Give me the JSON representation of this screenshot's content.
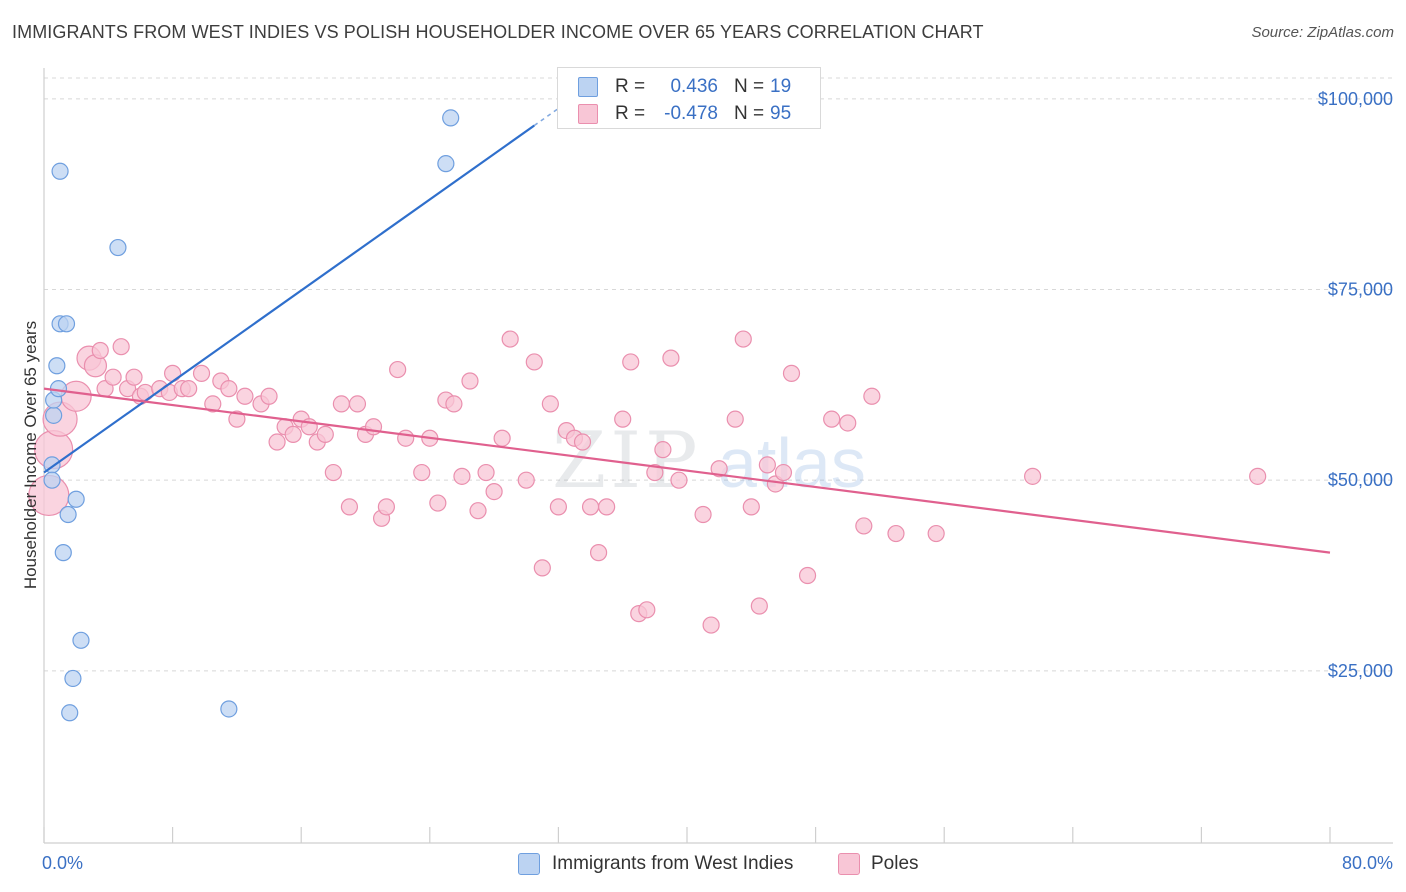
{
  "title": "IMMIGRANTS FROM WEST INDIES VS POLISH HOUSEHOLDER INCOME OVER 65 YEARS CORRELATION CHART",
  "source": "Source: ZipAtlas.com",
  "watermark": {
    "zip": "ZIP",
    "atlas": "atlas"
  },
  "colors": {
    "blue_fill": "#bcd3f2",
    "blue_stroke": "#6f9fdf",
    "blue_line": "#2f6fcc",
    "pink_fill": "#f8c6d6",
    "pink_stroke": "#ea8fae",
    "pink_line": "#e0608e",
    "tick_label": "#3a70c4",
    "grid": "#d8d8d8"
  },
  "legend_top": {
    "rows": [
      {
        "r_label": "R =",
        "r_value": "0.436",
        "n_label": "N =",
        "n_value": "19",
        "color": "blue"
      },
      {
        "r_label": "R =",
        "r_value": "-0.478",
        "n_label": "N =",
        "n_value": "95",
        "color": "pink"
      }
    ]
  },
  "legend_bottom": [
    {
      "label": "Immigrants from West Indies",
      "color": "blue"
    },
    {
      "label": "Poles",
      "color": "pink"
    }
  ],
  "chart_data": {
    "type": "scatter",
    "title": "IMMIGRANTS FROM WEST INDIES VS POLISH HOUSEHOLDER INCOME OVER 65 YEARS CORRELATION CHART",
    "xlabel": "",
    "ylabel": "Householder Income Over 65 years",
    "xlim": [
      0,
      80
    ],
    "ylim": [
      0,
      105000
    ],
    "x_tick_labels": [
      "0.0%",
      "80.0%"
    ],
    "y_ticks": [
      25000,
      50000,
      75000,
      100000
    ],
    "y_tick_labels": [
      "$25,000",
      "$50,000",
      "$75,000",
      "$100,000"
    ],
    "grid": true,
    "legend_position": "top-center",
    "series": [
      {
        "name": "Immigrants from West Indies",
        "color": "blue",
        "points": [
          [
            0.5,
            52000
          ],
          [
            0.5,
            50000
          ],
          [
            0.6,
            58500
          ],
          [
            0.6,
            60500
          ],
          [
            0.8,
            65000
          ],
          [
            0.9,
            62000
          ],
          [
            1.0,
            90500
          ],
          [
            1.0,
            70500
          ],
          [
            1.2,
            40500
          ],
          [
            1.4,
            70500
          ],
          [
            1.5,
            45500
          ],
          [
            1.6,
            19500
          ],
          [
            1.8,
            24000
          ],
          [
            2.0,
            47500
          ],
          [
            2.3,
            29000
          ],
          [
            4.6,
            80500
          ],
          [
            11.5,
            20000
          ],
          [
            25.0,
            91500
          ],
          [
            25.3,
            97500
          ]
        ],
        "trend": {
          "x": [
            0,
            30.5
          ],
          "y": [
            51000,
            96500
          ],
          "solid_to_x": 30.5,
          "dashed_to_x": 34.5
        }
      },
      {
        "name": "Poles",
        "color": "pink",
        "points": [
          [
            0.3,
            48000
          ],
          [
            0.6,
            54000
          ],
          [
            1.0,
            58000
          ],
          [
            2.0,
            61000
          ],
          [
            2.8,
            66000
          ],
          [
            3.2,
            65000
          ],
          [
            3.5,
            67000
          ],
          [
            3.8,
            62000
          ],
          [
            4.3,
            63500
          ],
          [
            4.8,
            67500
          ],
          [
            5.2,
            62000
          ],
          [
            5.6,
            63500
          ],
          [
            6.0,
            61000
          ],
          [
            6.3,
            61500
          ],
          [
            7.2,
            62000
          ],
          [
            7.8,
            61500
          ],
          [
            8.0,
            64000
          ],
          [
            8.6,
            62000
          ],
          [
            9.0,
            62000
          ],
          [
            9.8,
            64000
          ],
          [
            10.5,
            60000
          ],
          [
            11.0,
            63000
          ],
          [
            11.5,
            62000
          ],
          [
            12.0,
            58000
          ],
          [
            12.5,
            61000
          ],
          [
            13.5,
            60000
          ],
          [
            14.0,
            61000
          ],
          [
            14.5,
            55000
          ],
          [
            15.0,
            57000
          ],
          [
            15.5,
            56000
          ],
          [
            16.0,
            58000
          ],
          [
            16.5,
            57000
          ],
          [
            17.0,
            55000
          ],
          [
            17.5,
            56000
          ],
          [
            18.0,
            51000
          ],
          [
            18.5,
            60000
          ],
          [
            19.0,
            46500
          ],
          [
            19.5,
            60000
          ],
          [
            20.0,
            56000
          ],
          [
            20.5,
            57000
          ],
          [
            21.0,
            45000
          ],
          [
            21.3,
            46500
          ],
          [
            22.0,
            64500
          ],
          [
            22.5,
            55500
          ],
          [
            23.5,
            51000
          ],
          [
            24.0,
            55500
          ],
          [
            24.5,
            47000
          ],
          [
            25.0,
            60500
          ],
          [
            25.5,
            60000
          ],
          [
            26.0,
            50500
          ],
          [
            26.5,
            63000
          ],
          [
            27.0,
            46000
          ],
          [
            27.5,
            51000
          ],
          [
            28.0,
            48500
          ],
          [
            28.5,
            55500
          ],
          [
            29.0,
            68500
          ],
          [
            30.0,
            50000
          ],
          [
            30.5,
            65500
          ],
          [
            31.0,
            38500
          ],
          [
            31.5,
            60000
          ],
          [
            32.0,
            46500
          ],
          [
            32.5,
            56500
          ],
          [
            33.0,
            55500
          ],
          [
            33.5,
            55000
          ],
          [
            34.0,
            46500
          ],
          [
            34.5,
            40500
          ],
          [
            35.0,
            46500
          ],
          [
            36.0,
            58000
          ],
          [
            36.5,
            65500
          ],
          [
            37.0,
            32500
          ],
          [
            37.5,
            33000
          ],
          [
            38.0,
            51000
          ],
          [
            38.5,
            54000
          ],
          [
            39.0,
            66000
          ],
          [
            39.5,
            50000
          ],
          [
            41.0,
            45500
          ],
          [
            41.5,
            31000
          ],
          [
            42.0,
            51500
          ],
          [
            43.0,
            58000
          ],
          [
            43.5,
            68500
          ],
          [
            44.0,
            46500
          ],
          [
            44.5,
            33500
          ],
          [
            45.0,
            52000
          ],
          [
            45.5,
            49500
          ],
          [
            46.0,
            51000
          ],
          [
            46.5,
            64000
          ],
          [
            47.5,
            37500
          ],
          [
            49.0,
            58000
          ],
          [
            50.0,
            57500
          ],
          [
            51.0,
            44000
          ],
          [
            51.5,
            61000
          ],
          [
            53.0,
            43000
          ],
          [
            55.5,
            43000
          ],
          [
            61.5,
            50500
          ],
          [
            75.5,
            50500
          ]
        ],
        "trend": {
          "x": [
            0,
            80
          ],
          "y": [
            62000,
            40500
          ]
        }
      }
    ]
  }
}
